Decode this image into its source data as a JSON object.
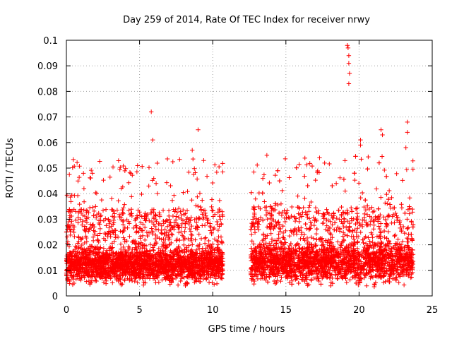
{
  "chart_data": {
    "type": "scatter",
    "title": "Day 259 of 2014, Rate Of TEC Index for receiver nrwy",
    "xlabel": "GPS time / hours",
    "ylabel": "ROTI / TECUs",
    "xlim": [
      0,
      25
    ],
    "ylim": [
      0,
      0.1
    ],
    "x_ticks": [
      0,
      5,
      10,
      15,
      20,
      25
    ],
    "x_tick_labels": [
      "0",
      "5",
      "10",
      "15",
      "20",
      "25"
    ],
    "y_ticks": [
      0,
      0.01,
      0.02,
      0.03,
      0.04,
      0.05,
      0.06,
      0.07,
      0.08,
      0.09,
      0.1
    ],
    "y_tick_labels": [
      "0",
      "0.01",
      "0.02",
      "0.03",
      "0.04",
      "0.05",
      "0.06",
      "0.07",
      "0.08",
      "0.09",
      "0.1"
    ],
    "grid": true,
    "marker": "+",
    "marker_color": "#ff0000",
    "series": [
      {
        "name": "ROTI",
        "segments": [
          {
            "x_start": 0.0,
            "x_end": 10.7,
            "baseline": 0.012,
            "spread": 0.006
          },
          {
            "x_start": 12.6,
            "x_end": 23.7,
            "baseline": 0.013,
            "spread": 0.007
          }
        ],
        "notable_points": [
          {
            "x": 5.8,
            "y": 0.072
          },
          {
            "x": 5.9,
            "y": 0.061
          },
          {
            "x": 9.0,
            "y": 0.065
          },
          {
            "x": 1.2,
            "y": 0.042
          },
          {
            "x": 19.2,
            "y": 0.098
          },
          {
            "x": 19.25,
            "y": 0.097
          },
          {
            "x": 19.3,
            "y": 0.094
          },
          {
            "x": 19.3,
            "y": 0.091
          },
          {
            "x": 19.35,
            "y": 0.087
          },
          {
            "x": 19.3,
            "y": 0.083
          },
          {
            "x": 13.7,
            "y": 0.055
          },
          {
            "x": 20.1,
            "y": 0.061
          },
          {
            "x": 20.1,
            "y": 0.059
          },
          {
            "x": 21.5,
            "y": 0.065
          },
          {
            "x": 21.6,
            "y": 0.063
          },
          {
            "x": 23.3,
            "y": 0.068
          },
          {
            "x": 23.3,
            "y": 0.064
          },
          {
            "x": 23.2,
            "y": 0.058
          },
          {
            "x": 17.3,
            "y": 0.054
          },
          {
            "x": 8.6,
            "y": 0.057
          }
        ]
      }
    ]
  }
}
